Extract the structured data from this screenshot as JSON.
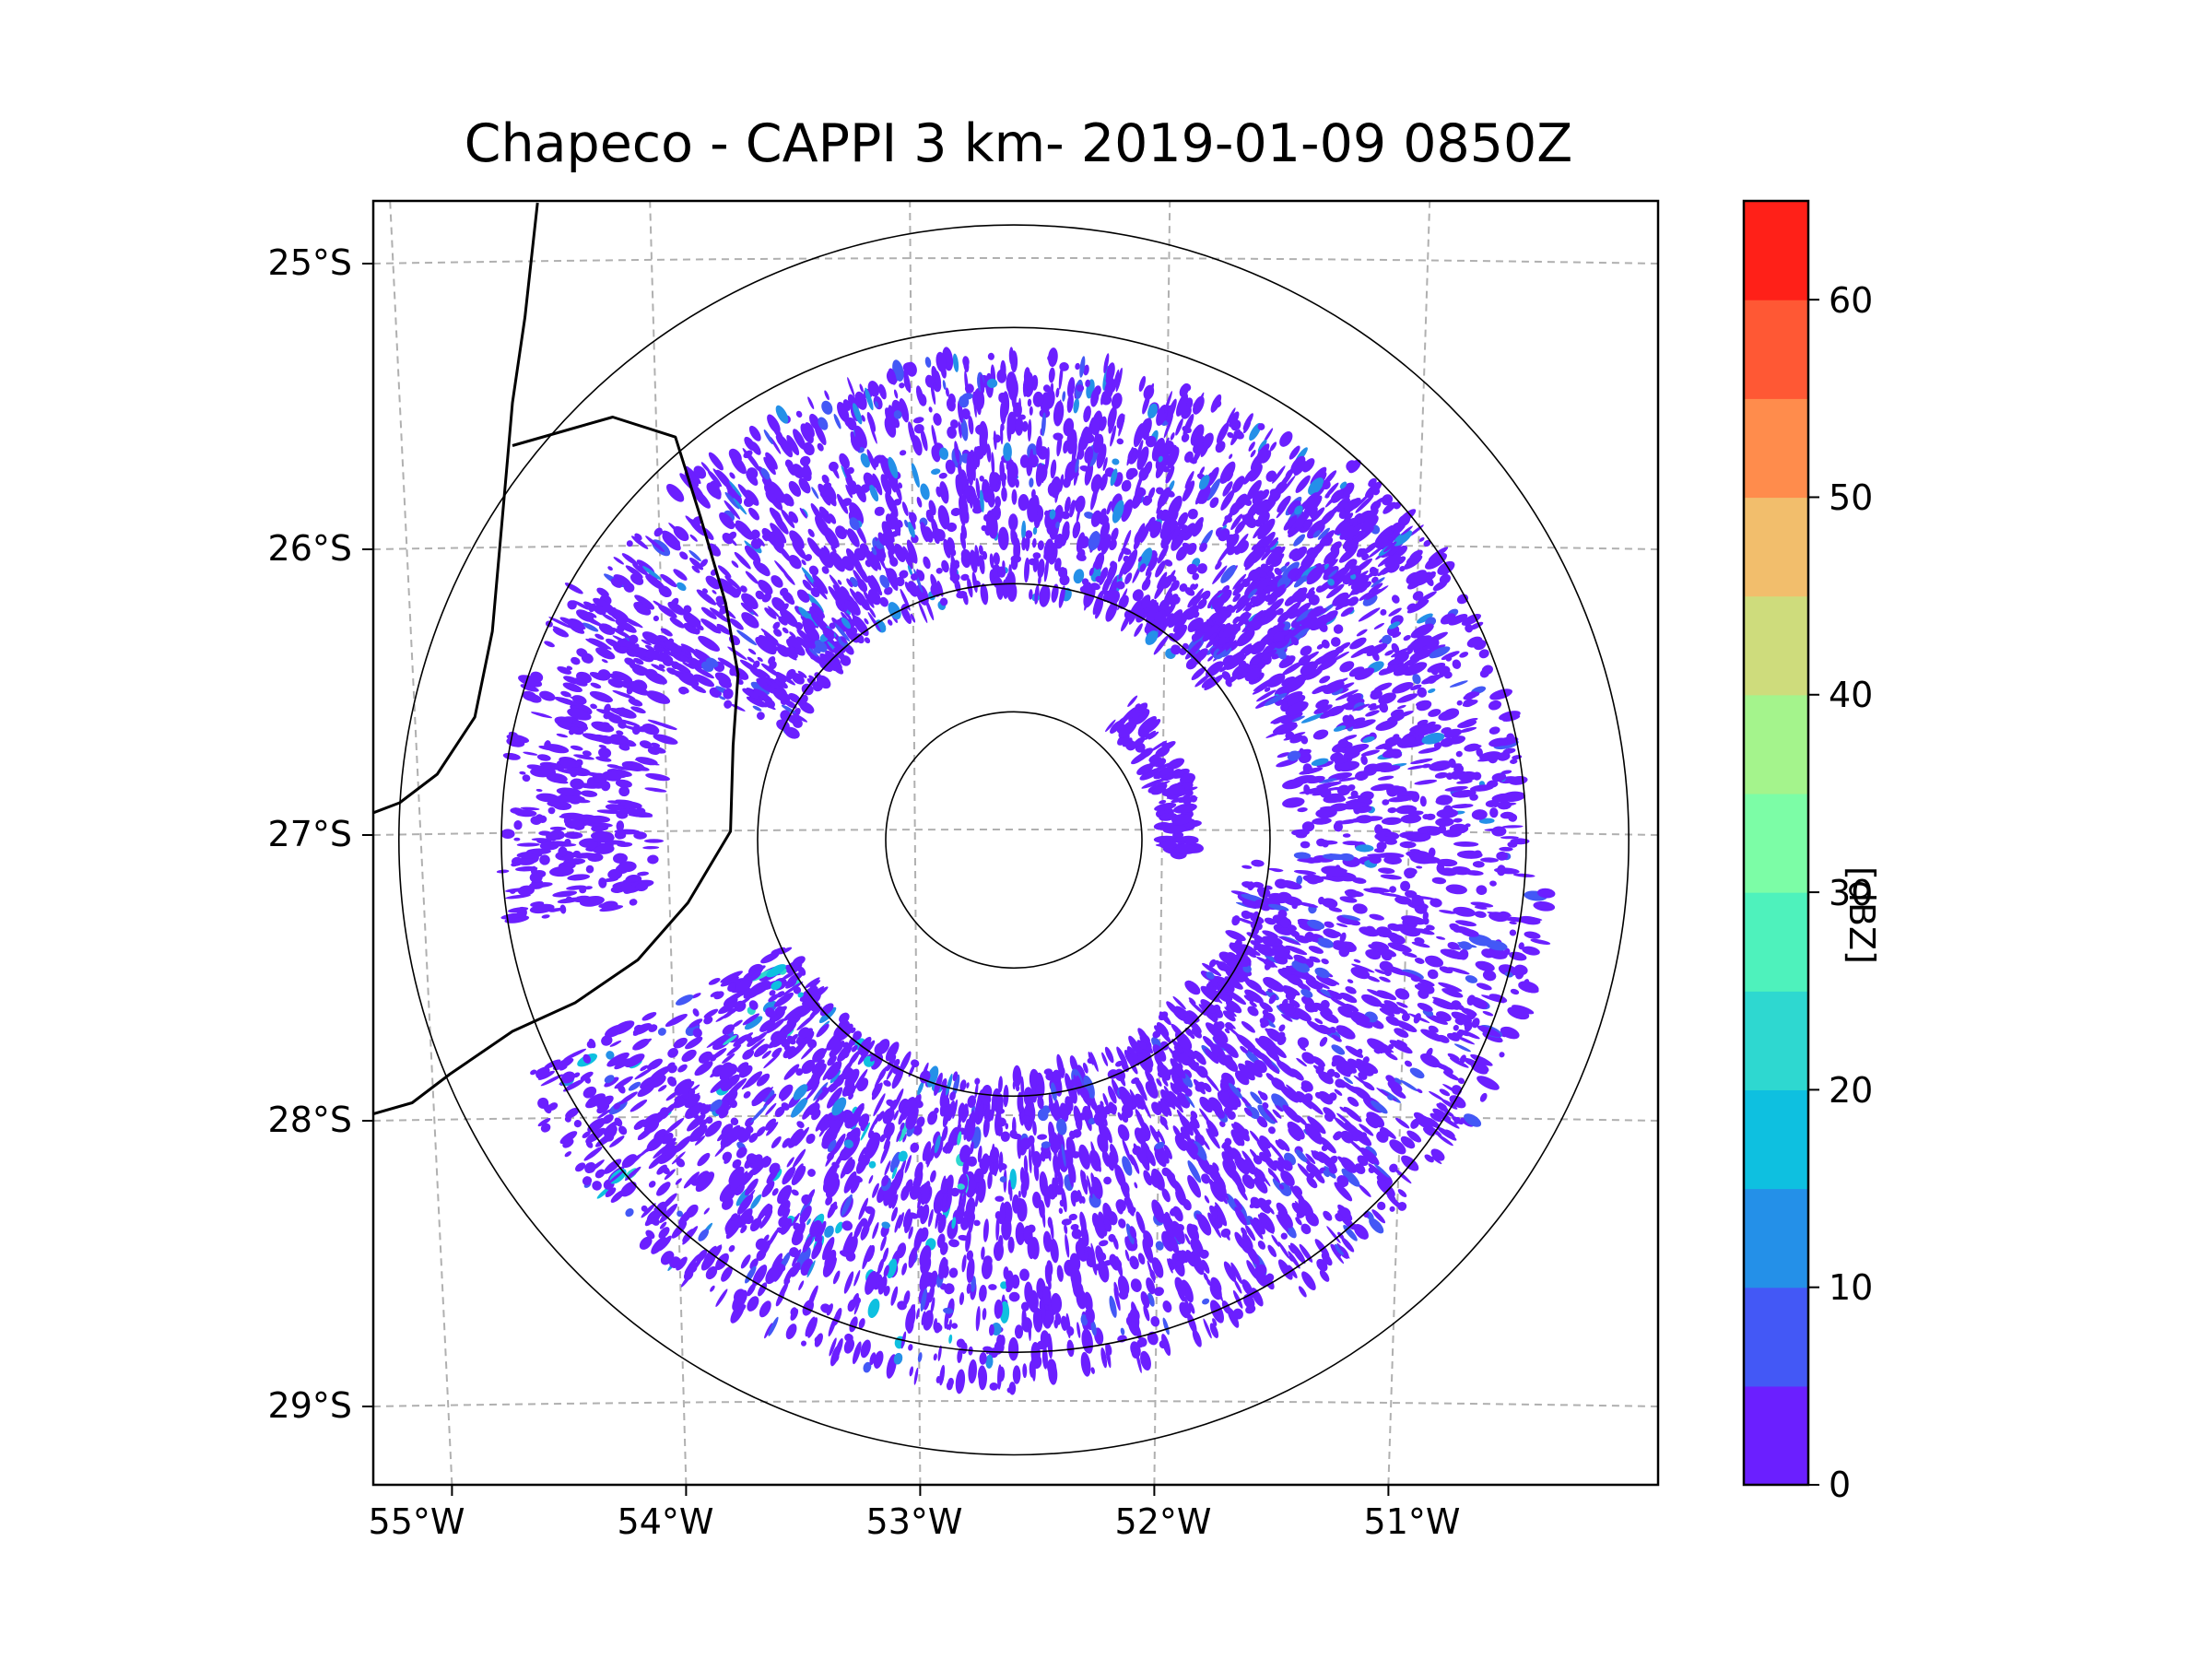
{
  "chart_data": {
    "type": "radar-ppi-map",
    "title": "Chapeco - CAPPI 3 km- 2019-01-09 0850Z",
    "radar_site": {
      "lon": -52.6,
      "lat": -27.03
    },
    "range_rings_km": [
      50,
      100,
      200,
      240
    ],
    "map_extent": {
      "lon": [
        -55.2,
        -50.1
      ],
      "lat": [
        -29.3,
        -24.8
      ]
    },
    "y_ticks": [
      {
        "value": -25,
        "label": "25°S"
      },
      {
        "value": -26,
        "label": "26°S"
      },
      {
        "value": -27,
        "label": "27°S"
      },
      {
        "value": -28,
        "label": "28°S"
      },
      {
        "value": -29,
        "label": "29°S"
      }
    ],
    "x_ticks": [
      {
        "value": -55,
        "label": "55°W"
      },
      {
        "value": -54,
        "label": "54°W"
      },
      {
        "value": -53,
        "label": "53°W"
      },
      {
        "value": -52,
        "label": "52°W"
      },
      {
        "value": -51,
        "label": "51°W"
      }
    ],
    "colorbar": {
      "label": "[dBZ]",
      "min": 0,
      "max": 65,
      "step": 5,
      "ticks": [
        0,
        10,
        20,
        30,
        40,
        50,
        60
      ],
      "colors": [
        "#6b1fff",
        "#4358f6",
        "#2490e8",
        "#0ec0e0",
        "#2ed8d0",
        "#4ef2bc",
        "#7cfda6",
        "#a4f48c",
        "#cedc7c",
        "#f2be6c",
        "#ff8c4c",
        "#ff5834",
        "#ff2018"
      ]
    },
    "echo_regions": [
      {
        "name": "north arc",
        "az_from": 295,
        "az_to": 55,
        "r_from": 95,
        "r_to": 190,
        "max_dbz": 15
      },
      {
        "name": "north-east arc",
        "az_from": 40,
        "az_to": 95,
        "r_from": 110,
        "r_to": 200,
        "max_dbz": 15
      },
      {
        "name": "inner east arc",
        "az_from": 40,
        "az_to": 95,
        "r_from": 58,
        "r_to": 72,
        "max_dbz": 5
      },
      {
        "name": "east to south-east band",
        "az_from": 95,
        "az_to": 180,
        "r_from": 90,
        "r_to": 210,
        "max_dbz": 10
      },
      {
        "name": "south-west band",
        "az_from": 180,
        "az_to": 245,
        "r_from": 95,
        "r_to": 215,
        "max_dbz": 22
      },
      {
        "name": "west scatter",
        "az_from": 260,
        "az_to": 300,
        "r_from": 140,
        "r_to": 200,
        "max_dbz": 5
      }
    ]
  }
}
